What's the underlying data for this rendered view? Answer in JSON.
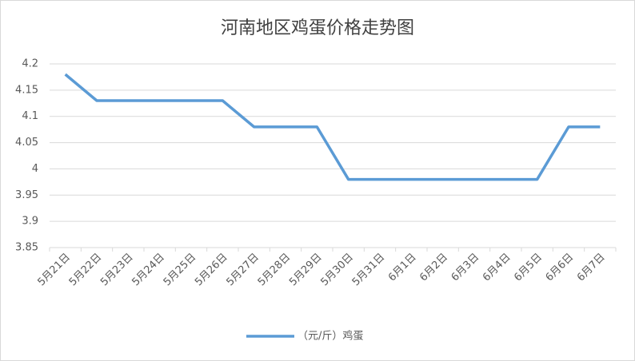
{
  "chart_data": {
    "type": "line",
    "title": "河南地区鸡蛋价格走势图",
    "categories": [
      "5月21日",
      "5月22日",
      "5月23日",
      "5月24日",
      "5月25日",
      "5月26日",
      "5月27日",
      "5月28日",
      "5月29日",
      "5月30日",
      "5月31日",
      "6月1日",
      "6月2日",
      "6月3日",
      "6月4日",
      "6月5日",
      "6月6日",
      "6月7日"
    ],
    "series": [
      {
        "name": "（元/斤）鸡蛋",
        "color": "#5b9bd5",
        "values": [
          4.18,
          4.13,
          4.13,
          4.13,
          4.13,
          4.13,
          4.08,
          4.08,
          4.08,
          3.98,
          3.98,
          3.98,
          3.98,
          3.98,
          3.98,
          3.98,
          4.08,
          4.08
        ]
      }
    ],
    "ylim": [
      3.85,
      4.2
    ],
    "yticks": [
      3.85,
      3.9,
      3.95,
      4,
      4.05,
      4.1,
      4.15,
      4.2
    ],
    "grid": true,
    "legend": "bottom"
  }
}
